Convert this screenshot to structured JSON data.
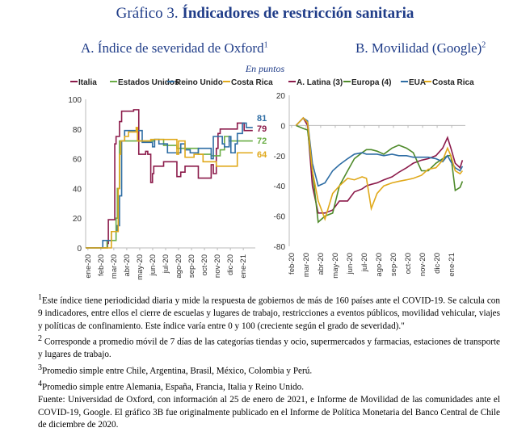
{
  "title_prefix": "Gráfico 3. ",
  "title_main": "Índicadores de restricción sanitaria",
  "subtitle_a": "A.  Índice de severidad de Oxford",
  "subtitle_a_sup": "1",
  "subtitle_b": "B. Movilidad (Google)",
  "subtitle_b_sup": "2",
  "unit": "En puntos",
  "chart_data": [
    {
      "type": "line",
      "title": "A.  Índice de severidad de Oxford",
      "ylim": [
        0,
        100
      ],
      "yticks": [
        0,
        20,
        40,
        60,
        80,
        100
      ],
      "xticks": [
        "ene-20",
        "feb-20",
        "mar-20",
        "abr-20",
        "may-20",
        "jun-20",
        "jul-20",
        "ago-20",
        "sep-20",
        "oct-20",
        "nov-20",
        "dic-20",
        "ene-21"
      ],
      "xrange": [
        "2020-01-01",
        "2021-01-31"
      ],
      "legend": "top",
      "step": true,
      "end_labels": [
        {
          "text": "81",
          "color": "#2e6da4"
        },
        {
          "text": "79",
          "color": "#8b1a4a"
        },
        {
          "text": "72",
          "color": "#6aad45"
        },
        {
          "text": "64",
          "color": "#e0a91b"
        }
      ],
      "series": [
        {
          "name": "Italia",
          "color": "#8b1a4a",
          "points": [
            [
              "2020-01-01",
              0
            ],
            [
              "2020-02-19",
              0
            ],
            [
              "2020-02-21",
              3
            ],
            [
              "2020-02-23",
              19
            ],
            [
              "2020-03-08",
              19
            ],
            [
              "2020-03-09",
              70
            ],
            [
              "2020-03-12",
              75
            ],
            [
              "2020-03-20",
              85
            ],
            [
              "2020-03-25",
              92
            ],
            [
              "2020-04-20",
              92
            ],
            [
              "2020-04-22",
              93
            ],
            [
              "2020-05-03",
              93
            ],
            [
              "2020-05-04",
              63
            ],
            [
              "2020-05-20",
              65
            ],
            [
              "2020-05-25",
              63
            ],
            [
              "2020-06-01",
              44
            ],
            [
              "2020-06-05",
              50
            ],
            [
              "2020-06-08",
              55
            ],
            [
              "2020-07-01",
              58
            ],
            [
              "2020-08-01",
              48
            ],
            [
              "2020-08-10",
              51
            ],
            [
              "2020-08-20",
              55
            ],
            [
              "2020-09-20",
              47
            ],
            [
              "2020-10-20",
              56
            ],
            [
              "2020-10-25",
              50
            ],
            [
              "2020-11-01",
              67
            ],
            [
              "2020-11-05",
              77
            ],
            [
              "2020-11-10",
              80
            ],
            [
              "2020-12-20",
              84
            ],
            [
              "2021-01-05",
              79
            ],
            [
              "2021-01-25",
              79
            ]
          ]
        },
        {
          "name": "Estados Unidos",
          "color": "#6aad45",
          "points": [
            [
              "2020-01-01",
              0
            ],
            [
              "2020-02-15",
              0
            ],
            [
              "2020-02-20",
              5
            ],
            [
              "2020-03-10",
              5
            ],
            [
              "2020-03-12",
              20
            ],
            [
              "2020-03-15",
              40
            ],
            [
              "2020-03-20",
              72
            ],
            [
              "2020-06-10",
              73
            ],
            [
              "2020-07-01",
              69
            ],
            [
              "2020-08-01",
              67
            ],
            [
              "2020-09-01",
              67
            ],
            [
              "2020-09-20",
              63
            ],
            [
              "2020-10-20",
              62
            ],
            [
              "2020-11-10",
              66
            ],
            [
              "2020-11-20",
              75
            ],
            [
              "2020-12-01",
              72
            ],
            [
              "2021-01-25",
              72
            ]
          ]
        },
        {
          "name": "Reino Unido",
          "color": "#2e6da4",
          "points": [
            [
              "2020-01-01",
              0
            ],
            [
              "2020-02-08",
              0
            ],
            [
              "2020-02-10",
              5
            ],
            [
              "2020-03-01",
              11
            ],
            [
              "2020-03-15",
              15
            ],
            [
              "2020-03-20",
              35
            ],
            [
              "2020-03-25",
              72
            ],
            [
              "2020-04-01",
              79
            ],
            [
              "2020-05-10",
              79
            ],
            [
              "2020-05-12",
              71
            ],
            [
              "2020-06-05",
              68
            ],
            [
              "2020-06-10",
              73
            ],
            [
              "2020-06-20",
              70
            ],
            [
              "2020-07-10",
              64
            ],
            [
              "2020-08-10",
              70
            ],
            [
              "2020-08-20",
              66
            ],
            [
              "2020-09-01",
              64
            ],
            [
              "2020-09-20",
              67
            ],
            [
              "2020-10-20",
              60
            ],
            [
              "2020-10-25",
              75
            ],
            [
              "2020-11-15",
              70
            ],
            [
              "2020-11-20",
              68
            ],
            [
              "2020-12-01",
              75
            ],
            [
              "2020-12-05",
              64
            ],
            [
              "2020-12-15",
              70
            ],
            [
              "2020-12-20",
              77
            ],
            [
              "2021-01-01",
              84
            ],
            [
              "2021-01-10",
              81
            ],
            [
              "2021-01-25",
              81
            ]
          ]
        },
        {
          "name": "Costa Rica",
          "color": "#e0a91b",
          "points": [
            [
              "2020-01-01",
              0
            ],
            [
              "2020-02-28",
              0
            ],
            [
              "2020-03-01",
              11
            ],
            [
              "2020-03-15",
              11
            ],
            [
              "2020-03-17",
              40
            ],
            [
              "2020-03-20",
              63
            ],
            [
              "2020-03-23",
              72
            ],
            [
              "2020-04-01",
              75
            ],
            [
              "2020-04-10",
              78
            ],
            [
              "2020-04-28",
              81
            ],
            [
              "2020-05-01",
              72
            ],
            [
              "2020-06-01",
              73
            ],
            [
              "2020-07-01",
              73
            ],
            [
              "2020-08-01",
              63
            ],
            [
              "2020-08-05",
              72
            ],
            [
              "2020-08-20",
              61
            ],
            [
              "2020-09-10",
              63
            ],
            [
              "2020-10-01",
              58
            ],
            [
              "2020-11-01",
              55
            ],
            [
              "2020-12-20",
              64
            ],
            [
              "2021-01-25",
              64
            ]
          ]
        }
      ]
    },
    {
      "type": "line",
      "title": "B. Movilidad (Google)",
      "ylim": [
        -80,
        20
      ],
      "yticks": [
        -80,
        -60,
        -40,
        -20,
        0,
        20
      ],
      "xticks": [
        "feb-20",
        "mar-20",
        "abr-20",
        "may-20",
        "jun-20",
        "jul-20",
        "ago-20",
        "sep-20",
        "oct-20",
        "nov-20",
        "dic-20",
        "ene-21"
      ],
      "xrange": [
        "2020-02-01",
        "2021-01-31"
      ],
      "legend": "top",
      "dates": [
        "2020-02-15",
        "2020-03-01",
        "2020-03-10",
        "2020-03-20",
        "2020-04-01",
        "2020-04-15",
        "2020-05-01",
        "2020-05-15",
        "2020-06-01",
        "2020-06-15",
        "2020-07-01",
        "2020-07-10",
        "2020-07-20",
        "2020-08-01",
        "2020-08-15",
        "2020-09-01",
        "2020-09-15",
        "2020-10-01",
        "2020-10-15",
        "2020-11-01",
        "2020-11-15",
        "2020-12-01",
        "2020-12-15",
        "2020-12-25",
        "2021-01-01",
        "2021-01-10",
        "2021-01-20",
        "2021-01-25"
      ],
      "series": [
        {
          "name": "A. Latina (3)",
          "color": "#8b1a4a",
          "values": [
            0,
            5,
            0,
            -40,
            -58,
            -58,
            -56,
            -50,
            -50,
            -44,
            -42,
            -40,
            -39,
            -38,
            -36,
            -34,
            -31,
            -28,
            -25,
            -23,
            -22,
            -20,
            -15,
            -8,
            -15,
            -25,
            -28,
            -23
          ]
        },
        {
          "name": "Europa (4)",
          "color": "#4e8a2a",
          "values": [
            0,
            -2,
            -3,
            -30,
            -64,
            -60,
            -58,
            -40,
            -30,
            -22,
            -18,
            -16,
            -16,
            -17,
            -19,
            -15,
            -13,
            -15,
            -18,
            -30,
            -30,
            -25,
            -22,
            -20,
            -20,
            -43,
            -41,
            -37
          ]
        },
        {
          "name": "EUA",
          "color": "#2e6da4",
          "values": [
            0,
            5,
            3,
            -25,
            -40,
            -38,
            -30,
            -26,
            -22,
            -19,
            -18,
            -19,
            -19,
            -19,
            -20,
            -19,
            -20,
            -20,
            -21,
            -21,
            -21,
            -22,
            -24,
            -20,
            -24,
            -28,
            -30,
            -27
          ]
        },
        {
          "name": "Costa Rica",
          "color": "#e0a91b",
          "values": [
            0,
            5,
            2,
            -30,
            -50,
            -62,
            -45,
            -40,
            -35,
            -36,
            -34,
            -35,
            -55,
            -45,
            -40,
            -38,
            -37,
            -36,
            -35,
            -33,
            -29,
            -28,
            -23,
            -15,
            -20,
            -30,
            -32,
            -30
          ]
        }
      ]
    }
  ],
  "notes": [
    {
      "sup": "1",
      "text": "Este índice tiene periodicidad diaria y mide la respuesta de gobiernos de más de 160 países ante el COVID-19. Se calcula con 9 indicadores, entre ellos el cierre de escuelas y lugares de trabajo, restricciones a eventos públicos, movilidad vehicular, viajes y políticas de confinamiento. Este índice varía entre 0 y 100 (creciente según el grado de severidad).\""
    },
    {
      "sup": "2",
      "text": " Corresponde a promedio móvil de 7 días de las categorías tiendas y ocio, supermercados y farmacias, estaciones de transporte y lugares de trabajo."
    },
    {
      "sup": "3",
      "text": "Promedio simple entre Chile, Argentina, Brasil, México, Colombia y Perú."
    },
    {
      "sup": "4",
      "text": "Promedio simple entre Alemania, España, Francia, Italia y Reino Unido."
    },
    {
      "sup": "",
      "text": "Fuente: Universidad de Oxford, con información al 25 de enero de 2021, e Informe de Movilidad de las comunidades ante el COVID-19, Google. El gráfico 3B fue originalmente publicado en el Informe de Política Monetaria del Banco Central de Chile de diciembre de 2020."
    }
  ]
}
